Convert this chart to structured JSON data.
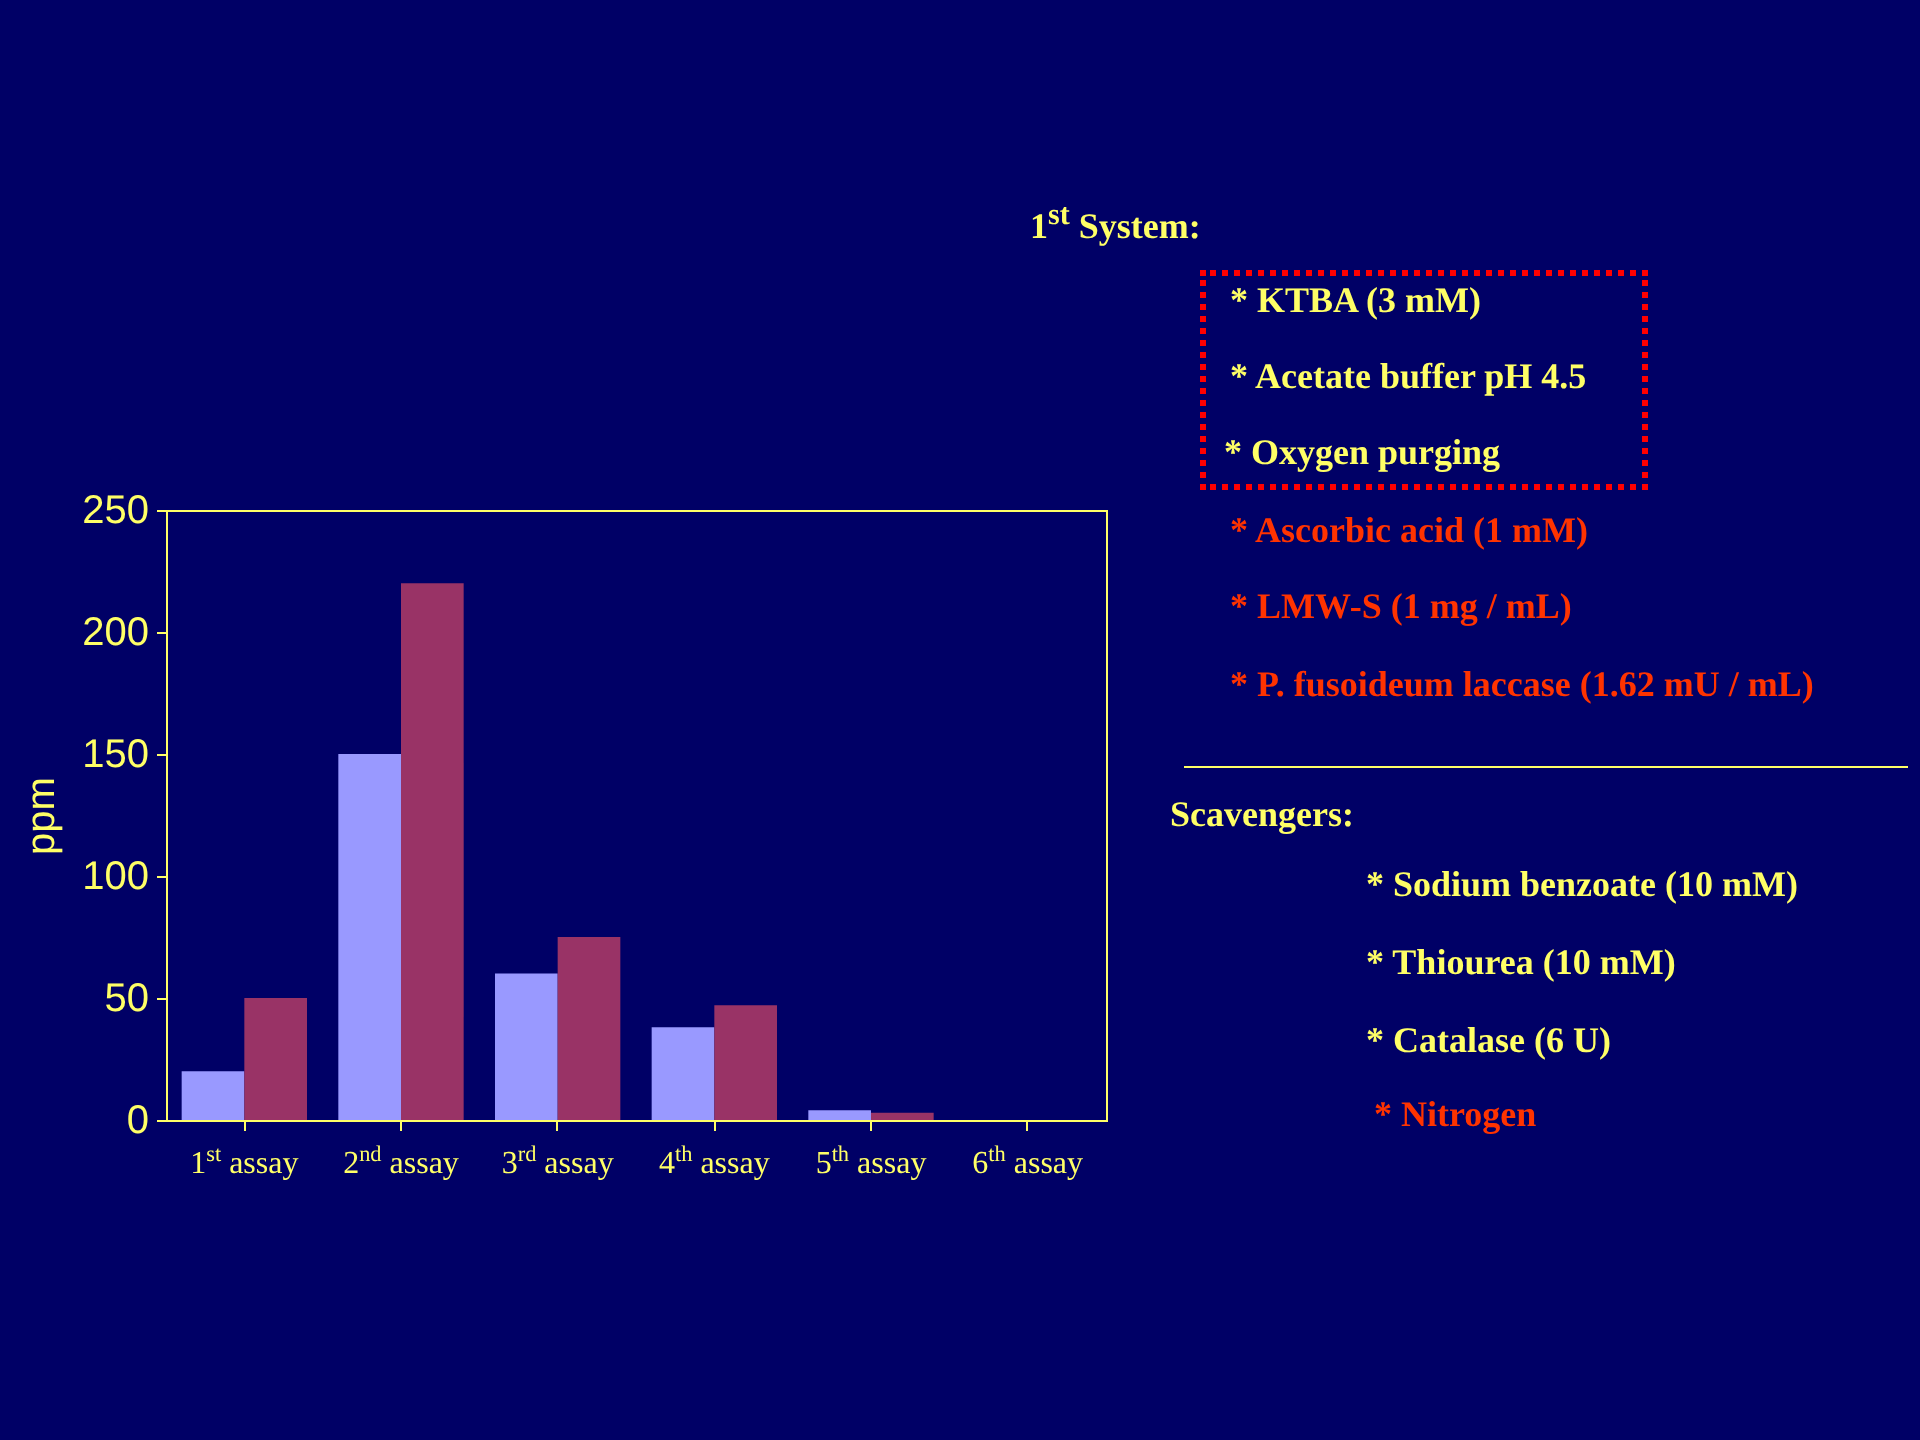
{
  "chart_data": {
    "type": "bar",
    "ylabel": "ppm",
    "categories": [
      "1$^{st}$ assay",
      "2$^{nd}$ assay",
      "3$^{rd}$ assay",
      "4$^{th}$ assay",
      "5$^{th}$ assay",
      "6$^{th}$ assay"
    ],
    "series": [
      {
        "color": "#9999ff",
        "values": [
          20,
          150,
          60,
          38,
          4,
          0
        ]
      },
      {
        "color": "#993366",
        "values": [
          50,
          220,
          75,
          47,
          3,
          0
        ]
      }
    ],
    "ylim": [
      0,
      250
    ],
    "yticks": [
      0,
      50,
      100,
      150,
      200,
      250
    ],
    "grid": false,
    "annotations": [
      "1$^{st}$ System:",
      "* KTBA (3 mM)",
      "* Acetate buffer pH 4.5",
      "* Oxygen purging",
      "* Ascorbic acid (1 mM)",
      "* LMW-S (1 mg / mL)",
      "* P. fusoideum laccase (1.62 mU / mL)",
      "Scavengers:",
      "* Sodium benzoate (10 mM)",
      "* Thiourea (10 mM)",
      "* Catalase (6 U)",
      "* Nitrogen"
    ]
  }
}
